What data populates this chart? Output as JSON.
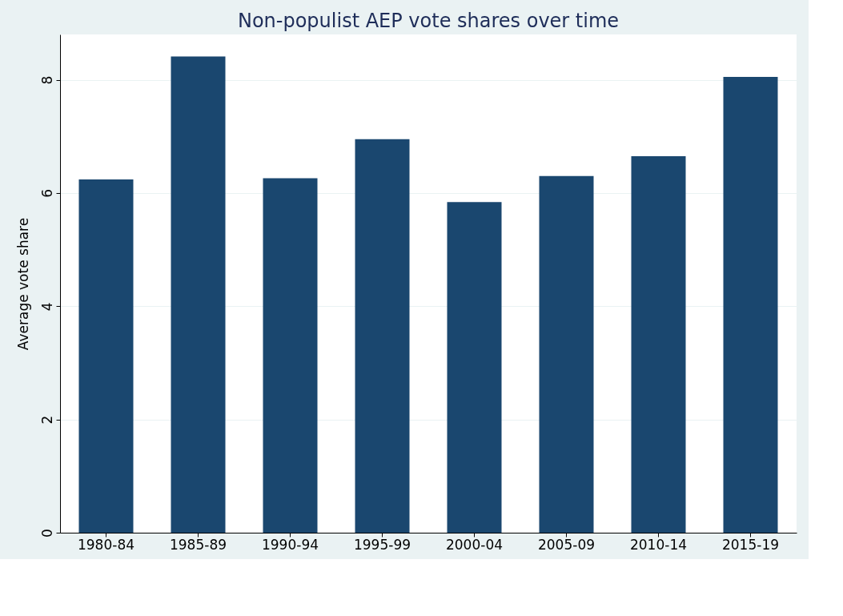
{
  "chart_data": {
    "type": "bar",
    "title": "Non-populist AEP vote shares over time",
    "ylabel": "Average vote share",
    "categories": [
      "1980-84",
      "1985-89",
      "1990-94",
      "1995-99",
      "2000-04",
      "2005-09",
      "2010-14",
      "2015-19"
    ],
    "values": [
      6.24,
      8.41,
      6.26,
      6.95,
      5.84,
      6.3,
      6.65,
      8.05
    ],
    "color": "#1a476f",
    "ylim": [
      0,
      8.8
    ],
    "yticks": [
      0,
      2,
      4,
      6,
      8
    ],
    "grid": "y"
  }
}
